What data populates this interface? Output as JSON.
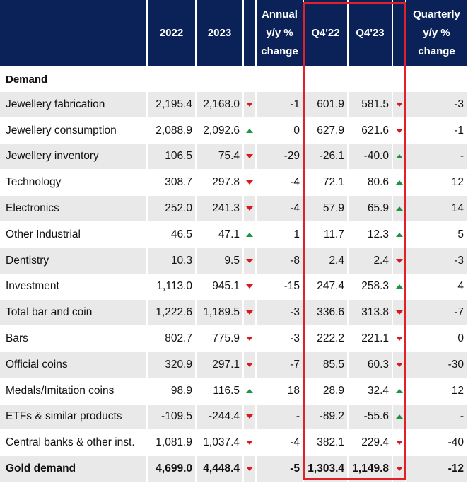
{
  "header": {
    "col_label": "",
    "col_2022": "2022",
    "col_2023": "2023",
    "col_annual": "Annual y/y % change",
    "col_q4_22": "Q4'22",
    "col_q4_23": "Q4'23",
    "col_quarterly": "Quarterly y/y % change"
  },
  "section_title": "Demand",
  "rows": [
    {
      "label": "Jewellery fabrication",
      "y2022": "2,195.4",
      "y2023": "2,168.0",
      "annual_trend": "down",
      "annual": "-1",
      "q4_22": "601.9",
      "q4_23": "581.5",
      "q_trend": "down",
      "quarterly": "-3"
    },
    {
      "label": "Jewellery consumption",
      "y2022": "2,088.9",
      "y2023": "2,092.6",
      "annual_trend": "up",
      "annual": "0",
      "q4_22": "627.9",
      "q4_23": "621.6",
      "q_trend": "down",
      "quarterly": "-1"
    },
    {
      "label": "Jewellery inventory",
      "y2022": "106.5",
      "y2023": "75.4",
      "annual_trend": "down",
      "annual": "-29",
      "q4_22": "-26.1",
      "q4_23": "-40.0",
      "q_trend": "up",
      "quarterly": "-"
    },
    {
      "label": "Technology",
      "y2022": "308.7",
      "y2023": "297.8",
      "annual_trend": "down",
      "annual": "-4",
      "q4_22": "72.1",
      "q4_23": "80.6",
      "q_trend": "up",
      "quarterly": "12"
    },
    {
      "label": "Electronics",
      "y2022": "252.0",
      "y2023": "241.3",
      "annual_trend": "down",
      "annual": "-4",
      "q4_22": "57.9",
      "q4_23": "65.9",
      "q_trend": "up",
      "quarterly": "14"
    },
    {
      "label": "Other Industrial",
      "y2022": "46.5",
      "y2023": "47.1",
      "annual_trend": "up",
      "annual": "1",
      "q4_22": "11.7",
      "q4_23": "12.3",
      "q_trend": "up",
      "quarterly": "5"
    },
    {
      "label": "Dentistry",
      "y2022": "10.3",
      "y2023": "9.5",
      "annual_trend": "down",
      "annual": "-8",
      "q4_22": "2.4",
      "q4_23": "2.4",
      "q_trend": "down",
      "quarterly": "-3"
    },
    {
      "label": "Investment",
      "y2022": "1,113.0",
      "y2023": "945.1",
      "annual_trend": "down",
      "annual": "-15",
      "q4_22": "247.4",
      "q4_23": "258.3",
      "q_trend": "up",
      "quarterly": "4"
    },
    {
      "label": "Total bar and coin",
      "y2022": "1,222.6",
      "y2023": "1,189.5",
      "annual_trend": "down",
      "annual": "-3",
      "q4_22": "336.6",
      "q4_23": "313.8",
      "q_trend": "down",
      "quarterly": "-7"
    },
    {
      "label": "Bars",
      "y2022": "802.7",
      "y2023": "775.9",
      "annual_trend": "down",
      "annual": "-3",
      "q4_22": "222.2",
      "q4_23": "221.1",
      "q_trend": "down",
      "quarterly": "0"
    },
    {
      "label": "Official coins",
      "y2022": "320.9",
      "y2023": "297.1",
      "annual_trend": "down",
      "annual": "-7",
      "q4_22": "85.5",
      "q4_23": "60.3",
      "q_trend": "down",
      "quarterly": "-30"
    },
    {
      "label": "Medals/Imitation coins",
      "y2022": "98.9",
      "y2023": "116.5",
      "annual_trend": "up",
      "annual": "18",
      "q4_22": "28.9",
      "q4_23": "32.4",
      "q_trend": "up",
      "quarterly": "12"
    },
    {
      "label": "ETFs & similar products",
      "y2022": "-109.5",
      "y2023": "-244.4",
      "annual_trend": "down",
      "annual": "-",
      "q4_22": "-89.2",
      "q4_23": "-55.6",
      "q_trend": "up",
      "quarterly": "-"
    },
    {
      "label": "Central banks & other inst.",
      "y2022": "1,081.9",
      "y2023": "1,037.4",
      "annual_trend": "down",
      "annual": "-4",
      "q4_22": "382.1",
      "q4_23": "229.4",
      "q_trend": "down",
      "quarterly": "-40"
    },
    {
      "label": "Gold demand",
      "y2022": "4,699.0",
      "y2023": "4,448.4",
      "annual_trend": "down",
      "annual": "-5",
      "q4_22": "1,303.4",
      "q4_23": "1,149.8",
      "q_trend": "down",
      "quarterly": "-12",
      "total": true
    }
  ],
  "colors": {
    "header_bg": "#0b2258",
    "stripe": "#e9e9ea",
    "up": "#1a9641",
    "down": "#d7191c",
    "highlight_box": "#e0202a"
  },
  "icons": {
    "up": "triangle-up-icon",
    "down": "triangle-down-icon"
  }
}
